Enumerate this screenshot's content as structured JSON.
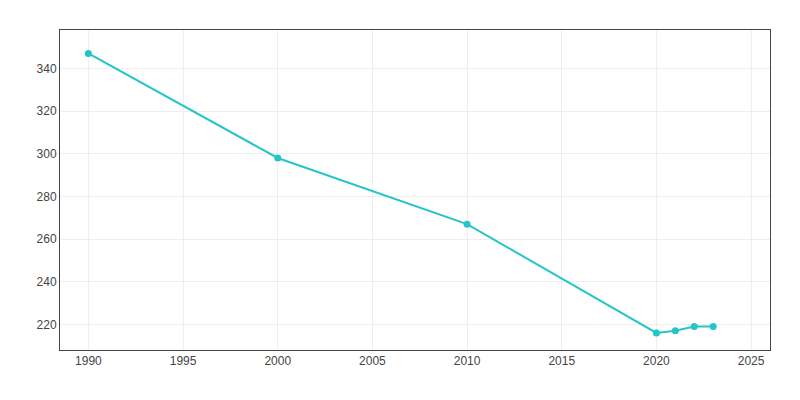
{
  "chart_data": {
    "type": "line",
    "x": [
      1990,
      2000,
      2010,
      2020,
      2021,
      2022,
      2023
    ],
    "values": [
      347,
      298,
      267,
      216,
      217,
      219,
      219
    ],
    "color": "#25C4C8",
    "marker": "circle",
    "xlim": [
      1988.5,
      2026
    ],
    "ylim": [
      208,
      358
    ],
    "xticks": [
      1990,
      1995,
      2000,
      2005,
      2010,
      2015,
      2020,
      2025
    ],
    "yticks": [
      220,
      240,
      260,
      280,
      300,
      320,
      340
    ],
    "grid": true
  }
}
